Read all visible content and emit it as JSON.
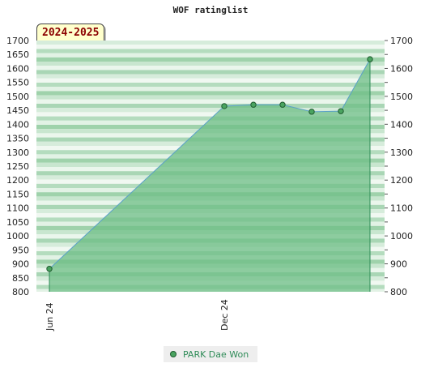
{
  "chart_data": {
    "type": "area",
    "title": "WOF ratinglist",
    "badge": "2024-2025",
    "ylim": [
      800,
      1700
    ],
    "y_ticks": [
      800,
      850,
      900,
      950,
      1000,
      1050,
      1100,
      1150,
      1200,
      1250,
      1300,
      1350,
      1400,
      1450,
      1500,
      1550,
      1600,
      1650,
      1700
    ],
    "y_ticks_right": [
      800,
      900,
      1000,
      1100,
      1200,
      1300,
      1400,
      1500,
      1600,
      1700
    ],
    "x_ticks": [
      "Jun 24",
      "Dec 24"
    ],
    "legend_placement": "bottom",
    "series": [
      {
        "name": "PARK Dae Won",
        "x": [
          "2024-06",
          "2024-12",
          "2025-01",
          "2025-02",
          "2025-03",
          "2025-04",
          "2025-05"
        ],
        "values": [
          882,
          1465,
          1470,
          1470,
          1445,
          1447,
          1633
        ]
      }
    ],
    "colors": {
      "area_fill": "#6dbd85",
      "line": "#5aa0c8",
      "marker": "#4aa460",
      "marker_stroke": "#1e5a2e"
    }
  }
}
